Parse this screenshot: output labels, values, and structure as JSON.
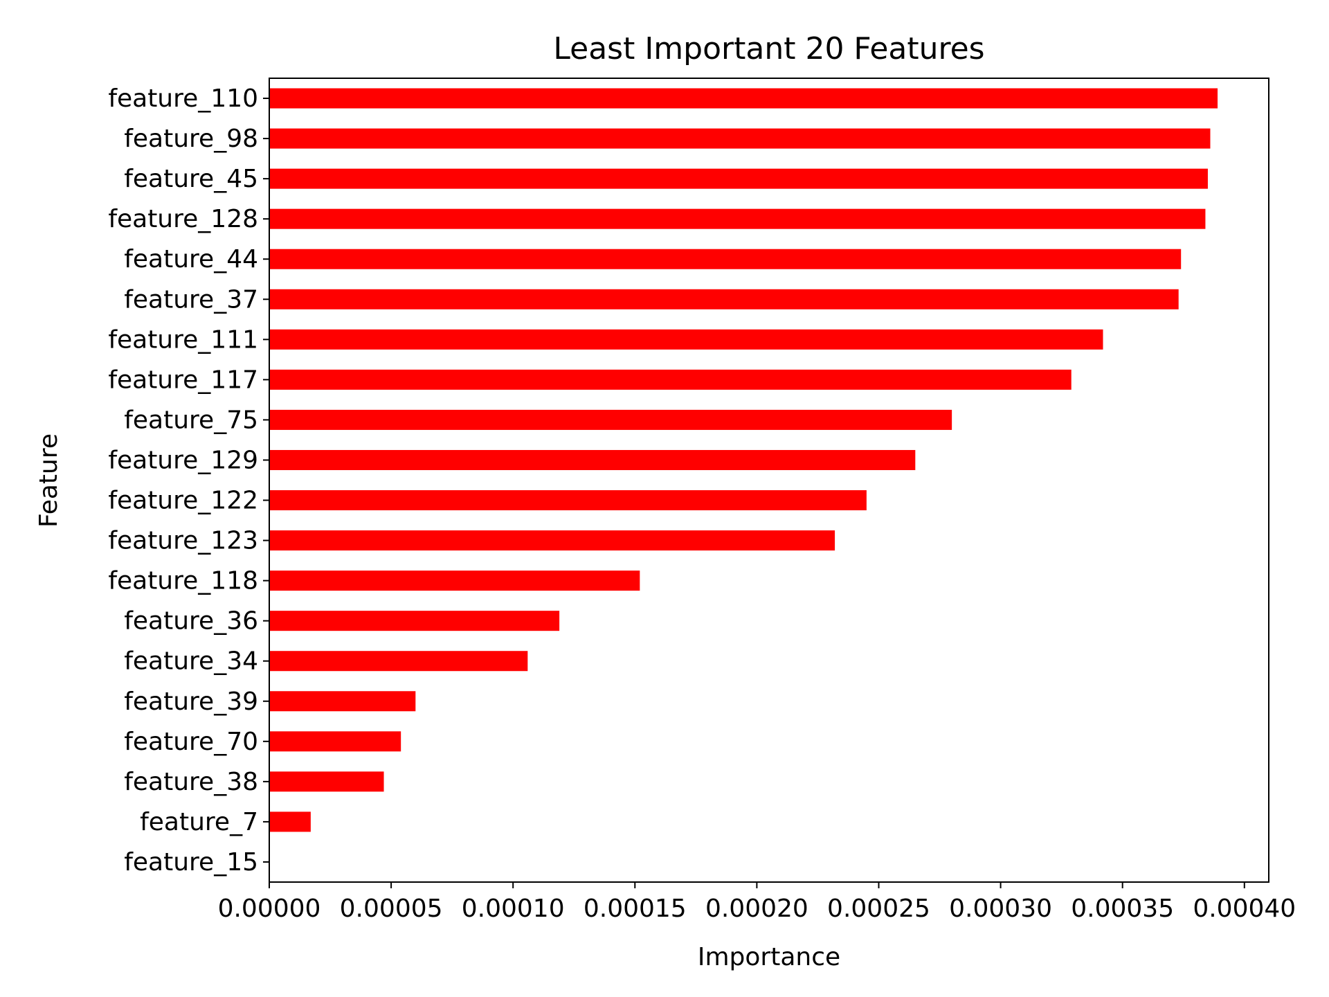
{
  "chart_data": {
    "type": "bar",
    "orientation": "horizontal",
    "title": "Least Important 20 Features",
    "xlabel": "Importance",
    "ylabel": "Feature",
    "xlim": [
      0,
      0.00041
    ],
    "xticks": [
      0,
      5e-05,
      0.0001,
      0.00015,
      0.0002,
      0.00025,
      0.0003,
      0.00035,
      0.0004
    ],
    "xtick_labels": [
      "0.00000",
      "0.00005",
      "0.00010",
      "0.00015",
      "0.00020",
      "0.00025",
      "0.00030",
      "0.00035",
      "0.00040"
    ],
    "categories": [
      "feature_110",
      "feature_98",
      "feature_45",
      "feature_128",
      "feature_44",
      "feature_37",
      "feature_111",
      "feature_117",
      "feature_75",
      "feature_129",
      "feature_122",
      "feature_123",
      "feature_118",
      "feature_36",
      "feature_34",
      "feature_39",
      "feature_70",
      "feature_38",
      "feature_7",
      "feature_15"
    ],
    "values": [
      0.000389,
      0.000386,
      0.000385,
      0.000384,
      0.000374,
      0.000373,
      0.000342,
      0.000329,
      0.00028,
      0.000265,
      0.000245,
      0.000232,
      0.000152,
      0.000119,
      0.000106,
      6e-05,
      5.4e-05,
      4.7e-05,
      1.7e-05,
      0
    ],
    "bar_color": "#ff0000",
    "grid": false,
    "legend": "none"
  }
}
